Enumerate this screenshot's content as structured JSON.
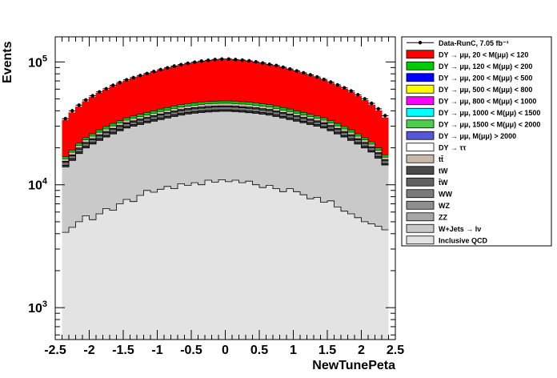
{
  "chart_data": {
    "type": "area",
    "xlabel": "NewTunePeta",
    "ylabel": "Events",
    "xlim": [
      -2.5,
      2.5
    ],
    "ylim": [
      550,
      160000
    ],
    "log_y": true,
    "bins": 48,
    "bin_low_edge": -2.4,
    "bin_width": 0.1,
    "x_ticks": [
      "-2.5",
      "-2",
      "-1.5",
      "-1",
      "-0.5",
      "0",
      "0.5",
      "1",
      "1.5",
      "2",
      "2.5"
    ],
    "y_ticks": [
      {
        "base": "10",
        "exp": "3",
        "value": 1000
      },
      {
        "base": "10",
        "exp": "4",
        "value": 10000
      },
      {
        "base": "10",
        "exp": "5",
        "value": 100000
      }
    ],
    "legend": [
      {
        "key": "data",
        "label": "Data-RunC, 7.05 fb⁻¹",
        "color": "#000000",
        "style": "marker"
      },
      {
        "key": "dy20",
        "label": "DY → μμ, 20 < M(μμ) <  120",
        "color": "#ff0000",
        "style": "box"
      },
      {
        "key": "dy120",
        "label": "DY → μμ, 120 < M(μμ) <  200",
        "color": "#00cc00",
        "style": "box"
      },
      {
        "key": "dy200",
        "label": "DY → μμ, 200 < M(μμ) <  500",
        "color": "#0000ff",
        "style": "box"
      },
      {
        "key": "dy500",
        "label": "DY → μμ, 500 < M(μμ) <  800",
        "color": "#ffff00",
        "style": "box"
      },
      {
        "key": "dy800",
        "label": "DY → μμ, 800 < M(μμ) < 1000",
        "color": "#ff00ff",
        "style": "box"
      },
      {
        "key": "dy1000",
        "label": "DY → μμ, 1000 < M(μμ) < 1500",
        "color": "#00ffff",
        "style": "box"
      },
      {
        "key": "dy1500",
        "label": "DY → μμ, 1500 < M(μμ) < 2000",
        "color": "#4dcc4d",
        "style": "box"
      },
      {
        "key": "dy2000",
        "label": "DY → μμ, M(μμ) > 2000",
        "color": "#5555dd",
        "style": "box"
      },
      {
        "key": "dytautau",
        "label": "DY → ττ",
        "color": "#ffffff",
        "style": "box"
      },
      {
        "key": "ttbar",
        "label": "tt̄",
        "color": "#c8b9ab",
        "style": "box"
      },
      {
        "key": "tw",
        "label": "tW",
        "color": "#4a4a4a",
        "style": "box"
      },
      {
        "key": "tbarw",
        "label": "t̄W",
        "color": "#616161",
        "style": "box"
      },
      {
        "key": "ww",
        "label": "WW",
        "color": "#7a7a7a",
        "style": "box"
      },
      {
        "key": "wz",
        "label": "WZ",
        "color": "#8e8e8e",
        "style": "box"
      },
      {
        "key": "zz",
        "label": "ZZ",
        "color": "#a6a6a6",
        "style": "box"
      },
      {
        "key": "wjets",
        "label": "W+Jets → lν",
        "color": "#c9c9c9",
        "style": "box"
      },
      {
        "key": "qcd",
        "label": "Inclusive QCD",
        "color": "#e3e3e3",
        "style": "box"
      }
    ],
    "stack_order": [
      "qcd",
      "wjets",
      "tw",
      "ww",
      "zz",
      "ttbar",
      "dy120",
      "dy20"
    ],
    "stack_totals": {
      "qcd": [
        4100,
        4500,
        5000,
        5600,
        5200,
        5800,
        6400,
        6200,
        7000,
        7600,
        7300,
        8200,
        9000,
        8700,
        9200,
        9700,
        9300,
        10200,
        9900,
        10400,
        10000,
        10900,
        10500,
        11000,
        10600,
        10900,
        10400,
        10700,
        10000,
        9500,
        9900,
        9300,
        8800,
        9300,
        8800,
        8300,
        7700,
        7900,
        7200,
        7400,
        6600,
        6100,
        5800,
        5400,
        5000,
        4800,
        4600,
        4300
      ],
      "wjets": [
        14000,
        15800,
        18000,
        20000,
        21500,
        23000,
        24500,
        26000,
        27500,
        29000,
        30000,
        31000,
        32000,
        33000,
        34000,
        35000,
        36000,
        37000,
        37700,
        38300,
        38800,
        39200,
        39500,
        39700,
        39700,
        39400,
        39100,
        38700,
        38200,
        37600,
        37000,
        36000,
        35000,
        34000,
        33000,
        32000,
        31000,
        30000,
        29000,
        27500,
        26000,
        24500,
        23000,
        21500,
        20000,
        18500,
        16500,
        14500
      ],
      "tw": [
        14400,
        16300,
        18500,
        20600,
        22100,
        23700,
        25200,
        26800,
        28300,
        29800,
        30900,
        31900,
        32900,
        34000,
        35000,
        36000,
        37100,
        38100,
        38800,
        39400,
        39900,
        40300,
        40600,
        40800,
        40800,
        40500,
        40200,
        39800,
        39300,
        38700,
        38100,
        37100,
        36000,
        35000,
        34000,
        32900,
        31900,
        30900,
        29800,
        28300,
        26800,
        25200,
        23700,
        22100,
        20600,
        19000,
        17000,
        14900
      ],
      "ww": [
        15200,
        17200,
        19500,
        21700,
        23300,
        25000,
        26600,
        28200,
        29800,
        31400,
        32500,
        33600,
        34700,
        35800,
        36900,
        38000,
        39100,
        40200,
        40900,
        41600,
        42100,
        42600,
        42900,
        43100,
        43100,
        42800,
        42400,
        42000,
        41500,
        40800,
        40200,
        39100,
        38000,
        36900,
        35800,
        34700,
        33600,
        32500,
        31400,
        29800,
        28200,
        26600,
        25000,
        23300,
        21700,
        20000,
        17900,
        15700
      ],
      "zz": [
        15500,
        17500,
        19900,
        22100,
        23700,
        25500,
        27100,
        28700,
        30400,
        32000,
        33100,
        34200,
        35300,
        36500,
        37600,
        38700,
        39800,
        40900,
        41700,
        42400,
        42900,
        43400,
        43700,
        43900,
        43900,
        43600,
        43200,
        42800,
        42300,
        41600,
        41000,
        39800,
        38700,
        37600,
        36500,
        35300,
        34200,
        33100,
        32000,
        30400,
        28700,
        27100,
        25500,
        23700,
        22100,
        20400,
        18200,
        16000
      ],
      "ttbar": [
        16300,
        18400,
        20900,
        23200,
        24900,
        26800,
        28500,
        30200,
        31900,
        33600,
        34800,
        35900,
        37100,
        38300,
        39500,
        40600,
        41800,
        42900,
        43800,
        44500,
        45100,
        45600,
        45900,
        46100,
        46100,
        45800,
        45400,
        45000,
        44400,
        43700,
        43000,
        41800,
        40600,
        39500,
        38300,
        37100,
        35900,
        34800,
        33600,
        31900,
        30200,
        28500,
        26800,
        24900,
        23200,
        21400,
        19100,
        16800
      ],
      "dy120": [
        17000,
        19200,
        21800,
        24200,
        26000,
        28000,
        29800,
        31600,
        33300,
        35100,
        36300,
        37500,
        38800,
        40000,
        41300,
        42500,
        43700,
        44900,
        45800,
        46500,
        47100,
        47600,
        47900,
        48100,
        48100,
        47800,
        47400,
        47000,
        46400,
        45600,
        44900,
        43700,
        42500,
        41300,
        40000,
        38800,
        37500,
        36300,
        35100,
        33300,
        31600,
        29800,
        28000,
        26000,
        24200,
        22400,
        20000,
        17500
      ],
      "dy20": [
        33500,
        38500,
        43000,
        47500,
        51500,
        55500,
        59000,
        63000,
        66500,
        70000,
        73000,
        76000,
        79000,
        82000,
        85000,
        88000,
        91000,
        93500,
        96000,
        98000,
        100000,
        101500,
        103000,
        104000,
        104000,
        103000,
        102000,
        100500,
        98500,
        96500,
        94000,
        92000,
        89000,
        86000,
        83000,
        80000,
        77000,
        74000,
        70500,
        67000,
        63500,
        60000,
        56500,
        52500,
        48500,
        44500,
        40000,
        35000
      ]
    },
    "data_points": [
      34500,
      40000,
      44500,
      49000,
      53000,
      57000,
      60500,
      64500,
      68000,
      71500,
      74500,
      77500,
      80500,
      83500,
      86500,
      89500,
      92500,
      95000,
      97500,
      99500,
      101500,
      103000,
      104500,
      105500,
      105500,
      104500,
      103500,
      102000,
      100000,
      98000,
      95500,
      93500,
      90500,
      87500,
      84500,
      81500,
      78500,
      75500,
      72000,
      68500,
      65000,
      61500,
      58000,
      54000,
      50000,
      46000,
      41500,
      36500
    ]
  }
}
